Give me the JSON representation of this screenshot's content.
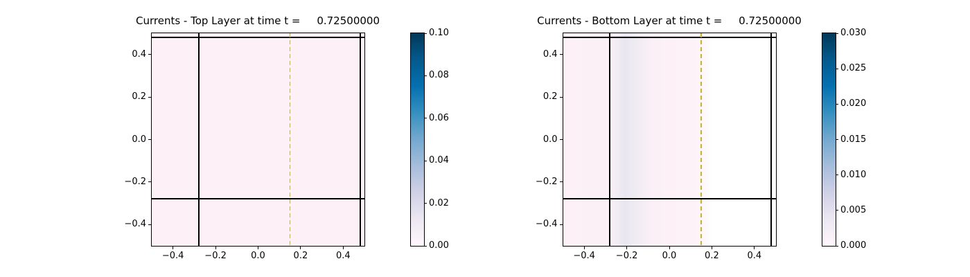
{
  "figure": {
    "background": "#ffffff",
    "line_color": "#000000",
    "dashed_line_color": "#c8b41e"
  },
  "colormap": {
    "name": "PuBu",
    "stops": [
      "#fff7fb",
      "#ece7f2",
      "#d0d1e6",
      "#a6bddb",
      "#74a9cf",
      "#3690c0",
      "#0570b0",
      "#045a8d",
      "#023858"
    ]
  },
  "chart_data": [
    {
      "type": "heatmap",
      "title": "Currents - Top Layer at time t =     0.72500000",
      "layer": "Top Layer",
      "time_value": "0.72500000",
      "xlim": [
        -0.5,
        0.5
      ],
      "ylim": [
        -0.5,
        0.5
      ],
      "xticks": [
        -0.4,
        -0.2,
        0.0,
        0.2,
        0.4
      ],
      "xtick_labels": [
        "−0.4",
        "−0.2",
        "0.0",
        "0.2",
        "0.4"
      ],
      "yticks": [
        0.4,
        0.2,
        0.0,
        -0.2,
        -0.4
      ],
      "ytick_labels": [
        "0.4",
        "0.2",
        "0.0",
        "−0.2",
        "−0.4"
      ],
      "field_description": "current magnitude approximately 0 everywhere (uniform pale pink, PuBu colormap minimum)",
      "field_profile": [
        {
          "x": -0.5,
          "color": "#fdf1f7"
        },
        {
          "x": 0.5,
          "color": "#fdf1f7"
        }
      ],
      "overlay_lines": [
        {
          "axis": "x",
          "value": -0.28,
          "style": "solid",
          "width": 2,
          "color": "#000000"
        },
        {
          "axis": "x",
          "value": 0.48,
          "style": "solid",
          "width": 2,
          "color": "#000000"
        },
        {
          "axis": "y",
          "value": 0.48,
          "style": "solid",
          "width": 2,
          "color": "#000000"
        },
        {
          "axis": "y",
          "value": -0.28,
          "style": "solid",
          "width": 2,
          "color": "#000000"
        },
        {
          "axis": "x",
          "value": 0.15,
          "style": "dashed",
          "width": 1.5,
          "color": "#c8b41e"
        }
      ],
      "colorbar": {
        "vmin": 0.0,
        "vmax": 0.1,
        "ticks": [
          0.0,
          0.02,
          0.04,
          0.06,
          0.08,
          0.1
        ],
        "tick_labels": [
          "0.00",
          "0.02",
          "0.04",
          "0.06",
          "0.08",
          "0.10"
        ]
      }
    },
    {
      "type": "heatmap",
      "title": "Currents - Bottom Layer at time t =     0.72500000",
      "layer": "Bottom Layer",
      "time_value": "0.72500000",
      "xlim": [
        -0.5,
        0.5
      ],
      "ylim": [
        -0.5,
        0.5
      ],
      "xticks": [
        -0.4,
        -0.2,
        0.0,
        0.2,
        0.4
      ],
      "xtick_labels": [
        "−0.4",
        "−0.2",
        "0.0",
        "0.2",
        "0.4"
      ],
      "yticks": [
        0.4,
        0.2,
        0.0,
        -0.2,
        -0.4
      ],
      "ytick_labels": [
        "0.4",
        "0.2",
        "0.0",
        "−0.2",
        "−0.4"
      ],
      "field_description": "near-zero current with faint vertical band (~0.004) around x=-0.2; white (masked) region right of x=0.18",
      "field_profile": [
        {
          "x": -0.5,
          "color": "#fdf1f7"
        },
        {
          "x": -0.28,
          "color": "#fcf0f7"
        },
        {
          "x": -0.235,
          "color": "#efeaf2"
        },
        {
          "x": -0.21,
          "color": "#e9e6f0"
        },
        {
          "x": -0.175,
          "color": "#edeaf2"
        },
        {
          "x": -0.1,
          "color": "#f9eff6"
        },
        {
          "x": -0.02,
          "color": "#fdf1f7"
        },
        {
          "x": 0.12,
          "color": "#fdf2f8"
        },
        {
          "x": 0.155,
          "color": "#fef6fa"
        },
        {
          "x": 0.2,
          "color": "#ffffff"
        },
        {
          "x": 0.5,
          "color": "#ffffff"
        }
      ],
      "overlay_lines": [
        {
          "axis": "x",
          "value": -0.28,
          "style": "solid",
          "width": 2,
          "color": "#000000"
        },
        {
          "axis": "x",
          "value": 0.48,
          "style": "solid",
          "width": 2,
          "color": "#000000"
        },
        {
          "axis": "y",
          "value": 0.48,
          "style": "solid",
          "width": 2,
          "color": "#000000"
        },
        {
          "axis": "y",
          "value": -0.28,
          "style": "solid",
          "width": 2,
          "color": "#000000"
        },
        {
          "axis": "x",
          "value": 0.15,
          "style": "dashed",
          "width": 1.5,
          "color": "#c8b41e"
        }
      ],
      "colorbar": {
        "vmin": 0.0,
        "vmax": 0.03,
        "ticks": [
          0.0,
          0.005,
          0.01,
          0.015,
          0.02,
          0.025,
          0.03
        ],
        "tick_labels": [
          "0.000",
          "0.005",
          "0.010",
          "0.015",
          "0.020",
          "0.025",
          "0.030"
        ]
      }
    }
  ]
}
